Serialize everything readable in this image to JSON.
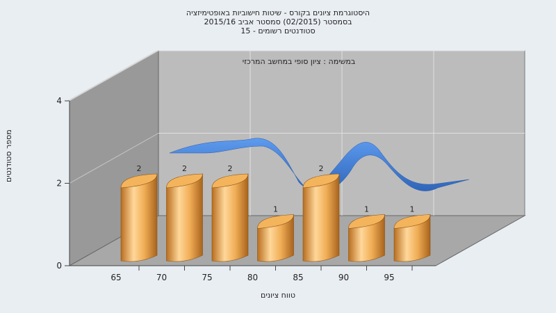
{
  "chart_data": {
    "type": "bar",
    "title_lines": [
      "היסטוגרמת ציונים בקורס - שיטות חישוביות באופטימיזציה",
      "בסמסטר (02/2015) סמסטר אביב 2015/16",
      "סטודנטים רשומים - 15"
    ],
    "annotation": "במשימה : ציון סופי במחשב המרכזי",
    "xlabel": "טווח ציונים",
    "ylabel": "מספר סטודנטים",
    "categories": [
      "65",
      "70",
      "75",
      "80",
      "85",
      "90",
      "95"
    ],
    "values": [
      2,
      2,
      2,
      1,
      2,
      1,
      1
    ],
    "yticks": [
      0,
      2,
      4
    ],
    "ylim": [
      0,
      4
    ],
    "curve": "smoothed distribution (blue ribbon)",
    "colors": {
      "bar": "#e6a04a",
      "curve": "#3a7ad4",
      "wall": "#bbbbbb",
      "side": "#9c9c9c",
      "floor": "#a7a7a7"
    }
  }
}
